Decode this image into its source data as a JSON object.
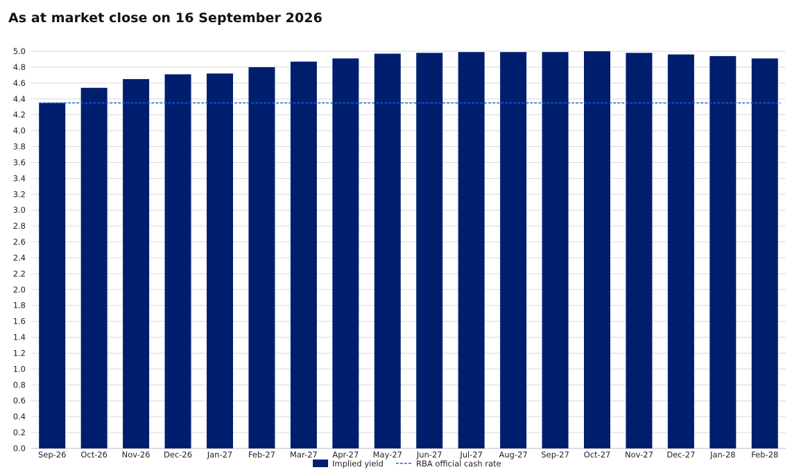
{
  "title": "As at market close on 16 September 2026",
  "chart_data": {
    "type": "bar",
    "categories": [
      "Sep-26",
      "Oct-26",
      "Nov-26",
      "Dec-26",
      "Jan-27",
      "Feb-27",
      "Mar-27",
      "Apr-27",
      "May-27",
      "Jun-27",
      "Jul-27",
      "Aug-27",
      "Sep-27",
      "Oct-27",
      "Nov-27",
      "Dec-27",
      "Jan-28",
      "Feb-28"
    ],
    "series": [
      {
        "name": "Implied yield",
        "values": [
          4.35,
          4.54,
          4.65,
          4.71,
          4.72,
          4.8,
          4.87,
          4.91,
          4.97,
          4.98,
          4.99,
          4.99,
          4.99,
          5.0,
          4.98,
          4.96,
          4.94,
          4.91
        ],
        "color": "#001e6e"
      }
    ],
    "reference_line": {
      "name": "RBA official cash rate",
      "value": 4.35,
      "color": "#1f5bd6",
      "style": "dashed"
    },
    "ylim": [
      0,
      5.0
    ],
    "yticks": [
      "0.0",
      "0.2",
      "0.4",
      "0.6",
      "0.8",
      "1.0",
      "1.2",
      "1.4",
      "1.6",
      "1.8",
      "2.0",
      "2.2",
      "2.4",
      "2.6",
      "2.8",
      "3.0",
      "3.2",
      "3.4",
      "3.6",
      "3.8",
      "4.0",
      "4.2",
      "4.4",
      "4.6",
      "4.8",
      "5.0"
    ],
    "xlabel": "",
    "ylabel": "",
    "grid": true,
    "legend_position": "bottom-center"
  }
}
